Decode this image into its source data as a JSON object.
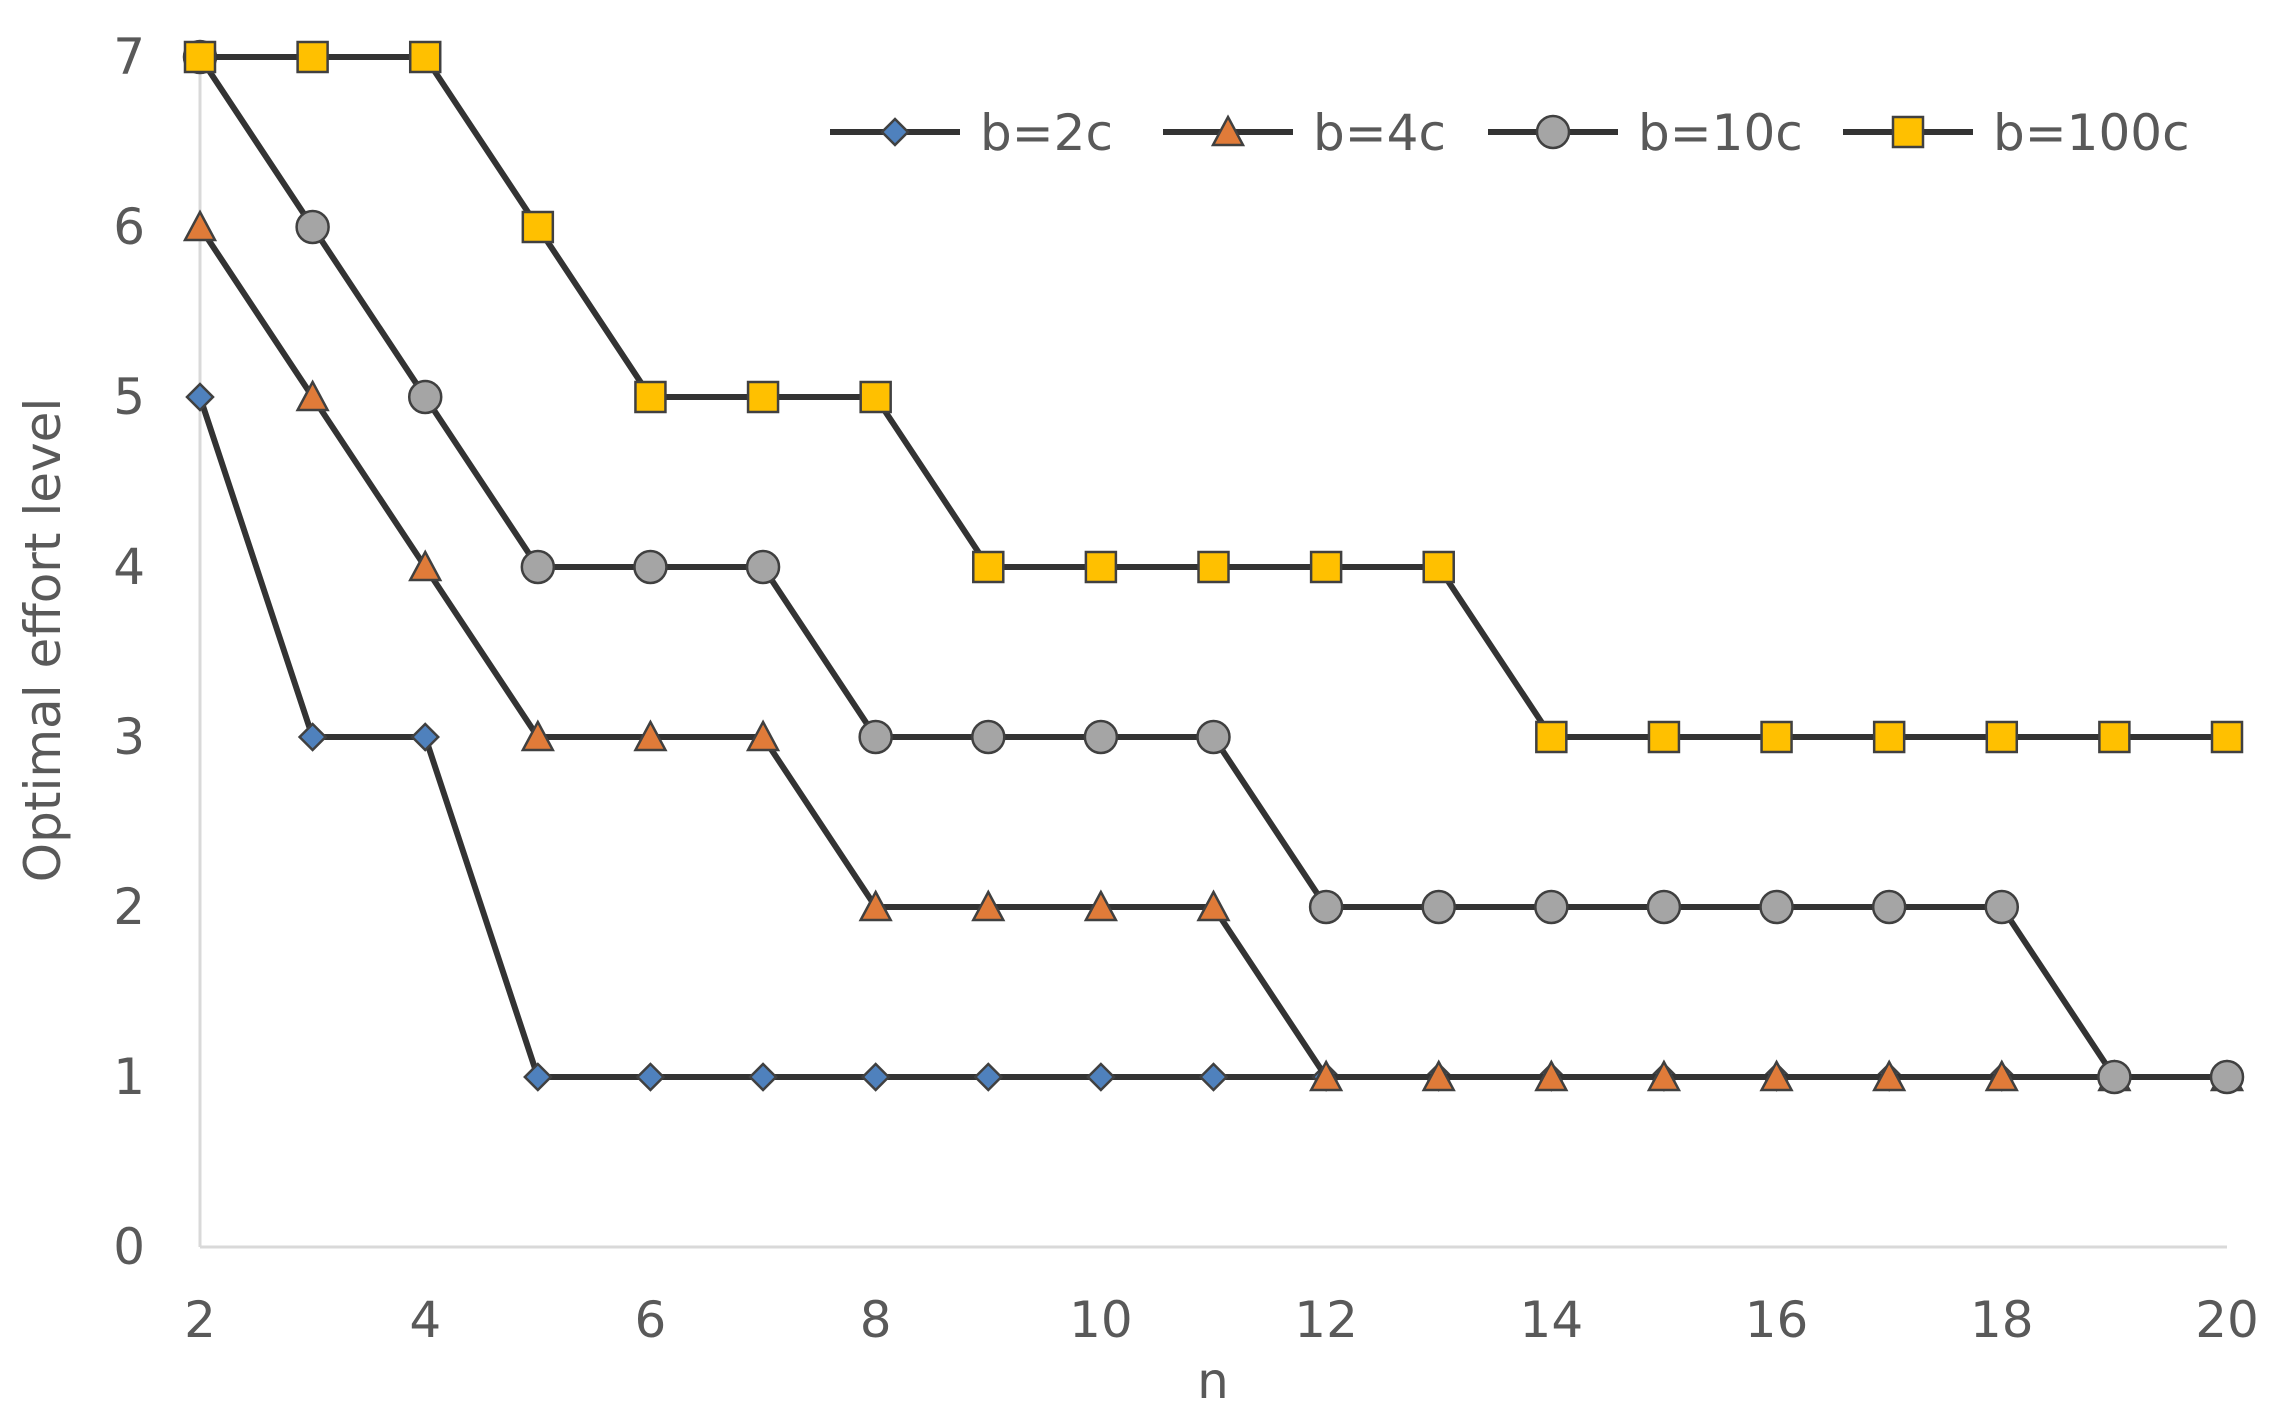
{
  "chart_data": {
    "type": "line",
    "title": "",
    "xlabel": "n",
    "ylabel": "Optimal effort level",
    "xlim": [
      2,
      20
    ],
    "ylim": [
      0,
      7
    ],
    "xticks": [
      "2",
      "4",
      "6",
      "8",
      "10",
      "12",
      "14",
      "16",
      "18",
      "20"
    ],
    "yticks": [
      "0",
      "1",
      "2",
      "3",
      "4",
      "5",
      "6",
      "7"
    ],
    "grid": false,
    "legend_position": "top-right",
    "x": [
      2,
      3,
      4,
      5,
      6,
      7,
      8,
      9,
      10,
      11,
      12,
      13,
      14,
      15,
      16,
      17,
      18,
      19,
      20
    ],
    "series": [
      {
        "name": "b=2c",
        "marker": "diamond",
        "color": "#4f81bd",
        "values": [
          5,
          3,
          3,
          1,
          1,
          1,
          1,
          1,
          1,
          1,
          1,
          1,
          1,
          1,
          1,
          1,
          1,
          1,
          1
        ]
      },
      {
        "name": "b=4c",
        "marker": "triangle",
        "color": "#e07b39",
        "values": [
          6,
          5,
          4,
          3,
          3,
          3,
          2,
          2,
          2,
          2,
          1,
          1,
          1,
          1,
          1,
          1,
          1,
          1,
          1
        ]
      },
      {
        "name": "b=10c",
        "marker": "circle",
        "color": "#a5a5a5",
        "values": [
          7,
          6,
          5,
          4,
          4,
          4,
          3,
          3,
          3,
          3,
          2,
          2,
          2,
          2,
          2,
          2,
          2,
          1,
          1
        ]
      },
      {
        "name": "b=100c",
        "marker": "square",
        "color": "#ffc000",
        "values": [
          7,
          7,
          7,
          6,
          5,
          5,
          5,
          4,
          4,
          4,
          4,
          4,
          3,
          3,
          3,
          3,
          3,
          3,
          3
        ]
      }
    ],
    "line_color": "#333333",
    "axis_color": "#d9d9d9"
  }
}
